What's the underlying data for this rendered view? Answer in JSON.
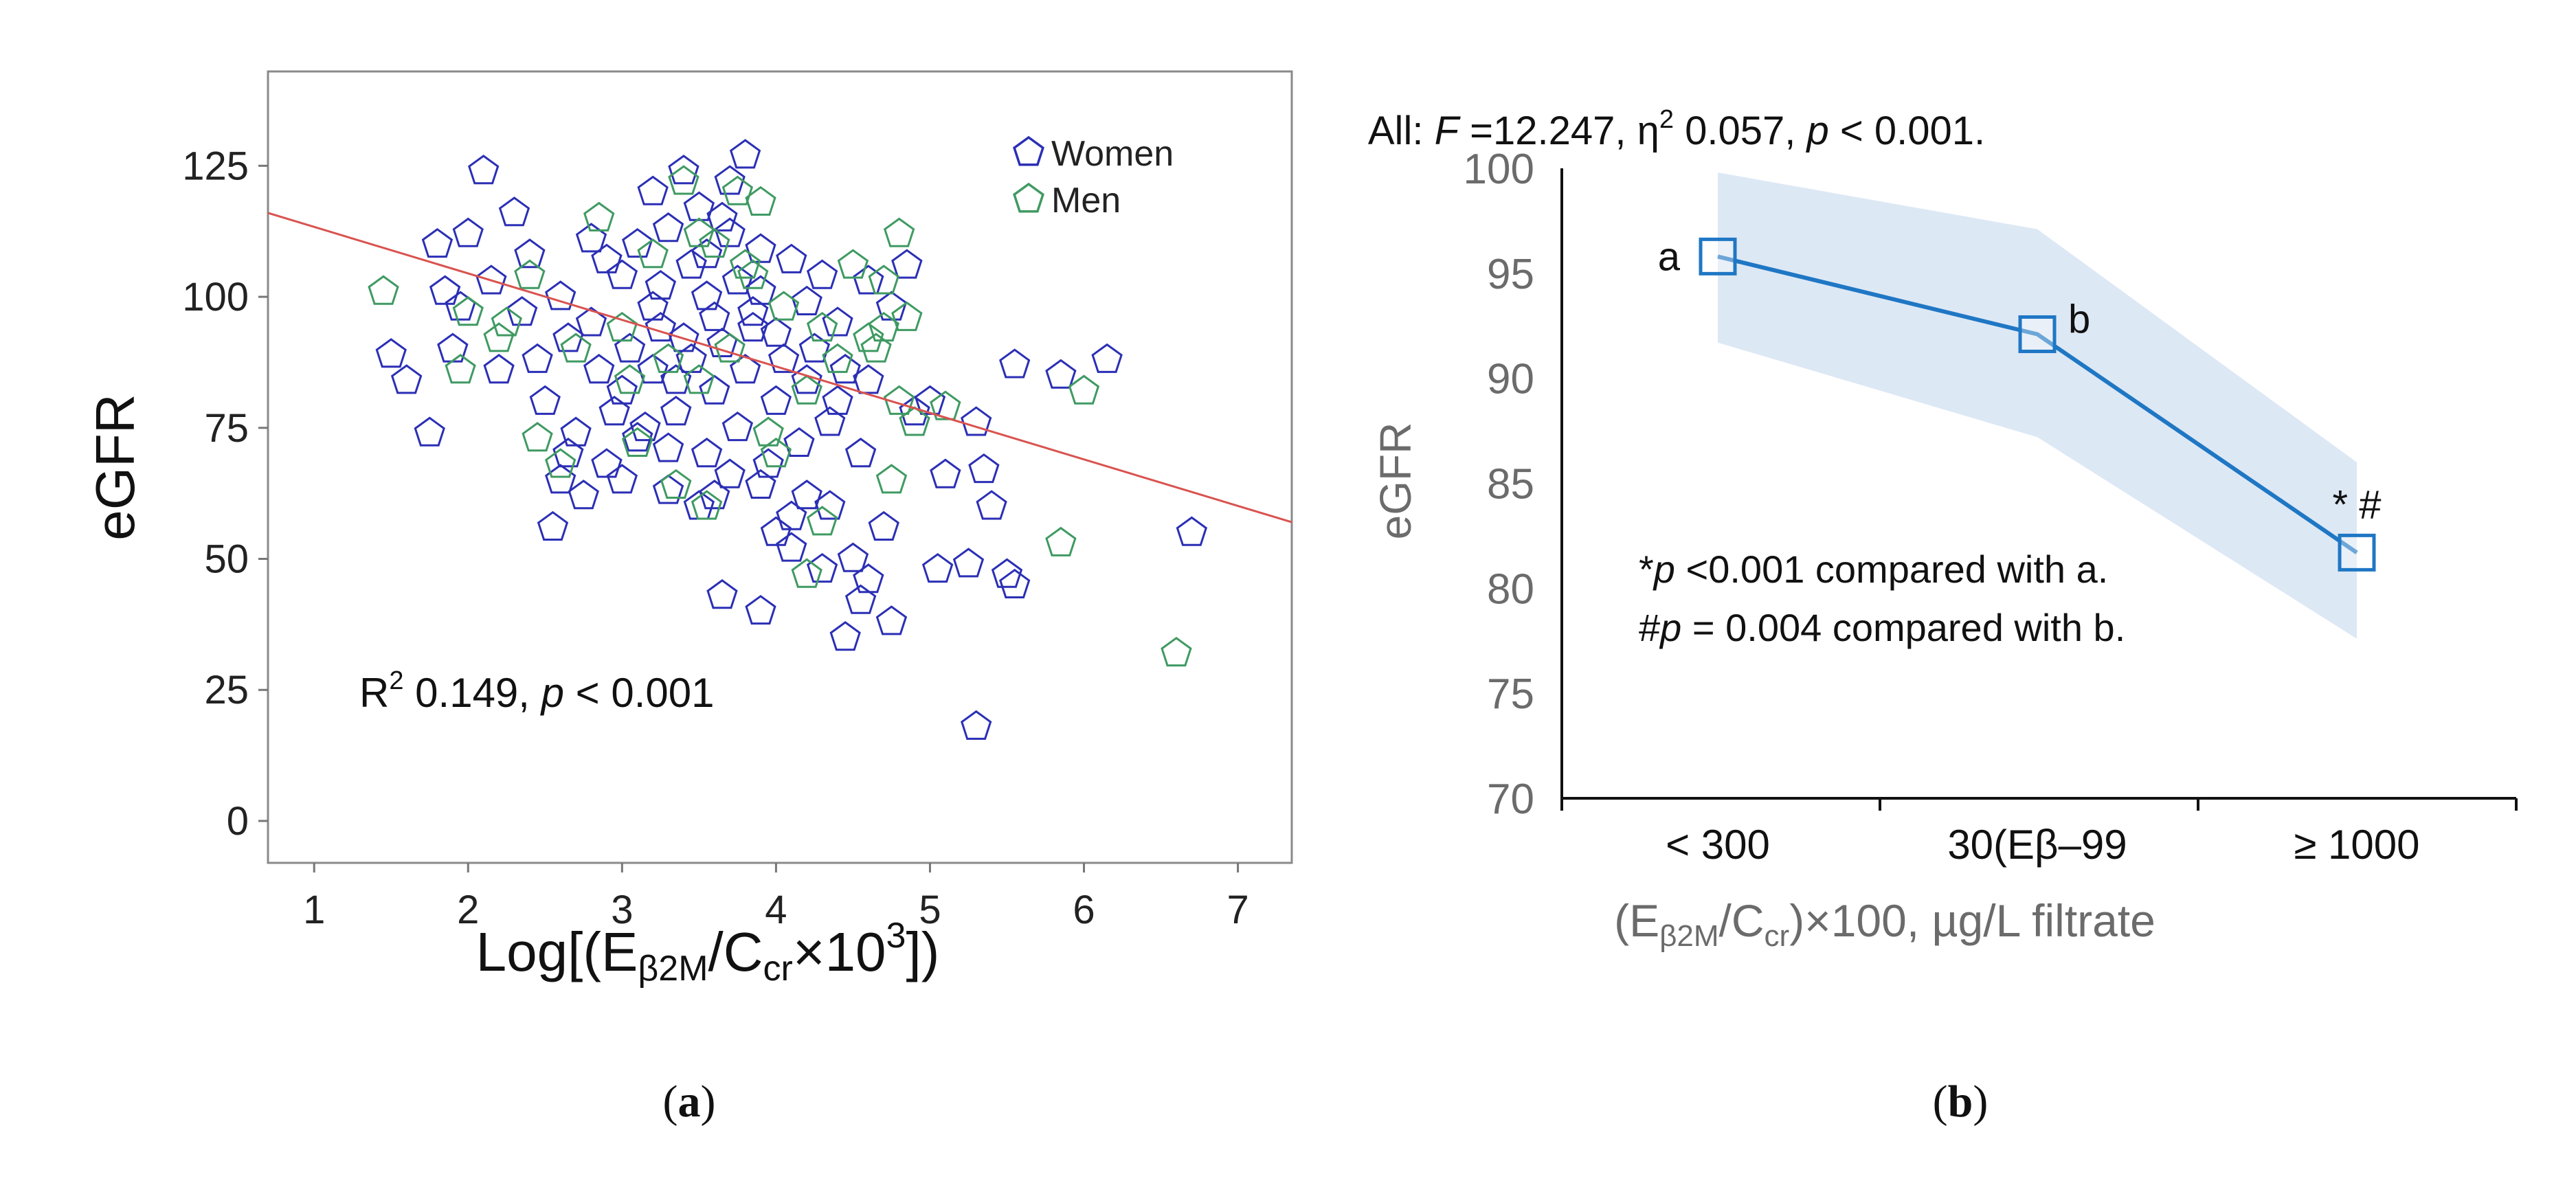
{
  "panel_a": {
    "panel_label_open": "(",
    "panel_label_letter": "a",
    "panel_label_close": ")",
    "annotation": {
      "r_label": "R",
      "r_sup": "2",
      "r_value": " 0.149, ",
      "p_italic": "p",
      "p_rest": " < 0.001"
    },
    "xlabel": {
      "p1": "Log[(E",
      "sub1": "β2M",
      "p2": "/C",
      "sub2": "cr",
      "p3": "×10",
      "sup": "3",
      "p4": "])"
    },
    "ylabel": "eGFR",
    "legend": {
      "women_label": "Women",
      "men_label": "Men"
    }
  },
  "panel_b": {
    "panel_label_open": "(",
    "panel_label_letter": "b",
    "panel_label_close": ")",
    "title": {
      "t1": "All: ",
      "f_italic": "F",
      "t2": " =12.247, η",
      "sup": "2",
      "t3": " 0.057, ",
      "p_italic": "p",
      "t4": " < 0.001."
    },
    "ylabel": "eGFR",
    "xlabel": {
      "p1": "(E",
      "sub1": "β2M",
      "p2": "/C",
      "sub2": "cr",
      "p3": ")×100, µg/L filtrate"
    },
    "note1": {
      "star": "*",
      "p_italic": "p",
      "rest": " <0.001 compared with a."
    },
    "note2": {
      "hash": "#",
      "p_italic": "p",
      "rest": " = 0.004  compared with b."
    },
    "point_labels": [
      "a",
      "b",
      "* #"
    ]
  },
  "colors": {
    "women": "#2b2fb5",
    "men": "#3f9a62",
    "regression": "#d9534f",
    "line_b": "#1f77c4",
    "band_b": "#dde8f5",
    "axis_gray": "#6b6b6b"
  },
  "chart_data": [
    {
      "type": "scatter",
      "xlim": [
        0.7,
        7.35
      ],
      "ylim": [
        -8,
        143
      ],
      "xticks": [
        1,
        2,
        3,
        4,
        5,
        6,
        7
      ],
      "yticks": [
        0,
        25,
        50,
        75,
        100,
        125
      ],
      "regression": {
        "x": [
          0.7,
          7.35
        ],
        "y": [
          116,
          57
        ]
      },
      "series": [
        {
          "name": "Women",
          "points": [
            [
              2.1,
              124
            ],
            [
              2.3,
              116
            ],
            [
              3.2,
              120
            ],
            [
              3.4,
              124
            ],
            [
              3.8,
              127
            ],
            [
              3.7,
              122
            ],
            [
              2.8,
              111
            ],
            [
              2.4,
              108
            ],
            [
              1.8,
              110
            ],
            [
              2.0,
              112
            ],
            [
              1.5,
              89
            ],
            [
              1.6,
              84
            ],
            [
              1.75,
              74
            ],
            [
              1.9,
              90
            ],
            [
              2.2,
              86
            ],
            [
              2.5,
              80
            ],
            [
              2.6,
              65
            ],
            [
              2.65,
              70
            ],
            [
              2.9,
              68
            ],
            [
              3.0,
              65
            ],
            [
              3.1,
              73
            ],
            [
              3.3,
              71
            ],
            [
              3.5,
              60
            ],
            [
              3.6,
              62
            ],
            [
              3.65,
              43
            ],
            [
              3.9,
              40
            ],
            [
              4.0,
              55
            ],
            [
              4.1,
              52
            ],
            [
              4.2,
              62
            ],
            [
              4.3,
              48
            ],
            [
              4.35,
              60
            ],
            [
              4.45,
              35
            ],
            [
              4.5,
              50
            ],
            [
              4.55,
              42
            ],
            [
              4.6,
              46
            ],
            [
              4.7,
              56
            ],
            [
              4.75,
              38
            ],
            [
              4.9,
              78
            ],
            [
              5.0,
              80
            ],
            [
              5.05,
              48
            ],
            [
              5.1,
              66
            ],
            [
              5.25,
              49
            ],
            [
              5.3,
              76
            ],
            [
              5.35,
              67
            ],
            [
              5.4,
              60
            ],
            [
              5.5,
              47
            ],
            [
              5.55,
              45
            ],
            [
              5.55,
              87
            ],
            [
              5.85,
              85
            ],
            [
              6.15,
              88
            ],
            [
              5.3,
              18
            ],
            [
              6.7,
              55
            ],
            [
              2.55,
              56
            ],
            [
              2.7,
              74
            ],
            [
              3.0,
              82
            ],
            [
              3.2,
              86
            ],
            [
              3.35,
              78
            ],
            [
              3.55,
              70
            ],
            [
              3.75,
              75
            ],
            [
              3.95,
              68
            ],
            [
              4.15,
              72
            ],
            [
              4.4,
              80
            ],
            [
              4.6,
              84
            ],
            [
              4.75,
              98
            ],
            [
              4.85,
              106
            ],
            [
              4.6,
              103
            ],
            [
              4.4,
              95
            ],
            [
              4.2,
              99
            ],
            [
              3.9,
              101
            ],
            [
              3.6,
              96
            ],
            [
              3.4,
              92
            ],
            [
              3.2,
              98
            ],
            [
              3.0,
              104
            ],
            [
              2.8,
              95
            ],
            [
              2.6,
              100
            ],
            [
              2.35,
              97
            ],
            [
              2.15,
              103
            ],
            [
              1.95,
              98
            ],
            [
              1.85,
              101
            ],
            [
              2.45,
              88
            ],
            [
              2.65,
              92
            ],
            [
              2.85,
              86
            ],
            [
              3.05,
              90
            ],
            [
              3.25,
              94
            ],
            [
              3.45,
              88
            ],
            [
              3.65,
              91
            ],
            [
              3.85,
              94
            ],
            [
              4.05,
              88
            ],
            [
              4.25,
              90
            ],
            [
              4.45,
              86
            ],
            [
              3.1,
              110
            ],
            [
              3.3,
              113
            ],
            [
              3.5,
              117
            ],
            [
              3.7,
              112
            ],
            [
              3.9,
              109
            ],
            [
              4.1,
              107
            ],
            [
              4.3,
              104
            ],
            [
              3.45,
              106
            ],
            [
              3.75,
              103
            ],
            [
              3.55,
              100
            ],
            [
              3.85,
              97
            ],
            [
              4.0,
              93
            ],
            [
              3.35,
              84
            ],
            [
              3.6,
              82
            ],
            [
              3.8,
              86
            ],
            [
              4.0,
              80
            ],
            [
              4.2,
              84
            ],
            [
              2.95,
              78
            ],
            [
              3.15,
              75
            ],
            [
              3.7,
              66
            ],
            [
              3.9,
              64
            ],
            [
              4.1,
              58
            ],
            [
              3.3,
              63
            ],
            [
              2.75,
              62
            ],
            [
              3.55,
              108
            ],
            [
              3.65,
              115
            ],
            [
              3.25,
              102
            ],
            [
              2.9,
              107
            ],
            [
              4.35,
              76
            ],
            [
              4.55,
              70
            ]
          ]
        },
        {
          "name": "Men",
          "points": [
            [
              1.45,
              101
            ],
            [
              2.0,
              97
            ],
            [
              2.25,
              95
            ],
            [
              2.7,
              90
            ],
            [
              3.05,
              84
            ],
            [
              3.3,
              88
            ],
            [
              3.5,
              84
            ],
            [
              3.7,
              90
            ],
            [
              3.8,
              106
            ],
            [
              3.75,
              120
            ],
            [
              3.4,
              122
            ],
            [
              4.5,
              106
            ],
            [
              4.7,
              103
            ],
            [
              4.8,
              112
            ],
            [
              4.85,
              96
            ],
            [
              4.7,
              94
            ],
            [
              4.6,
              92
            ],
            [
              4.4,
              88
            ],
            [
              4.2,
              82
            ],
            [
              4.8,
              80
            ],
            [
              4.9,
              76
            ],
            [
              5.1,
              79
            ],
            [
              4.75,
              65
            ],
            [
              4.3,
              57
            ],
            [
              4.2,
              47
            ],
            [
              5.85,
              53
            ],
            [
              6.0,
              82
            ],
            [
              6.6,
              32
            ],
            [
              2.45,
              73
            ],
            [
              2.6,
              68
            ],
            [
              3.1,
              72
            ],
            [
              3.35,
              64
            ],
            [
              3.55,
              60
            ],
            [
              3.95,
              74
            ],
            [
              4.0,
              70
            ],
            [
              3.2,
              108
            ],
            [
              2.85,
              115
            ],
            [
              3.6,
              110
            ],
            [
              3.85,
              104
            ],
            [
              4.05,
              98
            ],
            [
              3.5,
              112
            ],
            [
              2.4,
              104
            ],
            [
              2.2,
              92
            ],
            [
              1.95,
              86
            ],
            [
              3.9,
              118
            ],
            [
              4.65,
              90
            ],
            [
              4.3,
              94
            ],
            [
              3.0,
              94
            ]
          ]
        }
      ]
    },
    {
      "type": "line",
      "categories": [
        "< 300",
        "30(Eβ–99",
        "≥ 1000"
      ],
      "values": [
        95.8,
        92.1,
        81.7
      ],
      "ci_upper": [
        99.8,
        97.1,
        86.0
      ],
      "ci_lower": [
        91.7,
        87.2,
        77.6
      ],
      "ylim": [
        70,
        100
      ],
      "yticks": [
        70,
        75,
        80,
        85,
        90,
        95,
        100
      ]
    }
  ]
}
